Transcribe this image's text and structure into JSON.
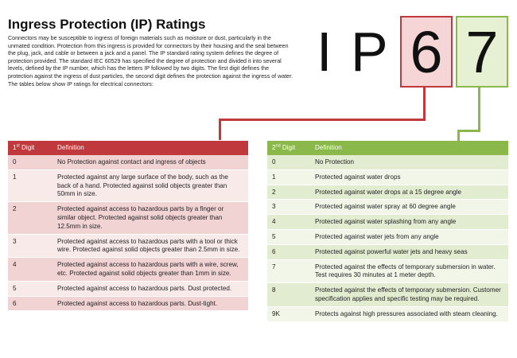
{
  "title": "Ingress Protection (IP) Ratings",
  "intro": "Connectors may be susceptible to ingress of foreign materials such as moisture or dust, particularly in the unmated condition. Protection from this ingress is provided for connectors by their housing and the seal between the plug, jack, and cable or between a jack and a panel. The IP standard rating system defines the degree of protection provided. The standard IEC 60529 has specified the degree of protection and divided it into several levels, defined by the IP number, which has the letters IP followed by two digits. The first digit defines the protection against the ingress of dust particles, the second digit defines the protection against the ingress of water. The tables below show IP ratings for electrical connectors:",
  "badge": {
    "letter1": "I",
    "letter2": "P",
    "digit1": "6",
    "digit2": "7"
  },
  "colors": {
    "red": "#c03a3d",
    "green": "#8ab84a"
  },
  "table1": {
    "header_num": "1",
    "header_sup": "st",
    "header_suffix": " Digit",
    "header_def": "Definition",
    "rows": [
      {
        "digit": "0",
        "definition": "No Protection against contact and ingress of objects"
      },
      {
        "digit": "1",
        "definition": "Protected against any large surface of the body, such as the back of a hand. Protected against solid objects greater than 50mm in size."
      },
      {
        "digit": "2",
        "definition": "Protected against access to hazardous parts by a finger or similar object. Protected against solid objects greater than 12.5mm in size."
      },
      {
        "digit": "3",
        "definition": "Protected against access to hazardous parts with a tool or thick wire. Protected against solid objects greater than 2.5mm in size."
      },
      {
        "digit": "4",
        "definition": "Protected against access to hazardous parts with a wire, screw, etc. Protected against solid objects greater than 1mm in size."
      },
      {
        "digit": "5",
        "definition": "Protected against access to hazardous parts. Dust protected."
      },
      {
        "digit": "6",
        "definition": "Protected against access to hazardous parts. Dust-tight."
      }
    ]
  },
  "table2": {
    "header_num": "2",
    "header_sup": "nd",
    "header_suffix": " Digit",
    "header_def": "Definition",
    "rows": [
      {
        "digit": "0",
        "definition": "No Protection"
      },
      {
        "digit": "1",
        "definition": "Protected against water drops"
      },
      {
        "digit": "2",
        "definition": "Protected against water drops at a 15 degree angle"
      },
      {
        "digit": "3",
        "definition": "Protected against water spray at 60 degree angle"
      },
      {
        "digit": "4",
        "definition": "Protected against water splashing from any angle"
      },
      {
        "digit": "5",
        "definition": "Protected against water jets from any angle"
      },
      {
        "digit": "6",
        "definition": "Protected against powerful water jets and heavy seas"
      },
      {
        "digit": "7",
        "definition": "Protected against the effects of temporary submersion in water. Test requires 30 minutes at 1 meter depth."
      },
      {
        "digit": "8",
        "definition": "Protected against the effects of temporary submersion. Customer specification applies and specific testing may be required."
      },
      {
        "digit": "9K",
        "definition": "Protects against high pressures associated with steam cleaning."
      }
    ]
  }
}
